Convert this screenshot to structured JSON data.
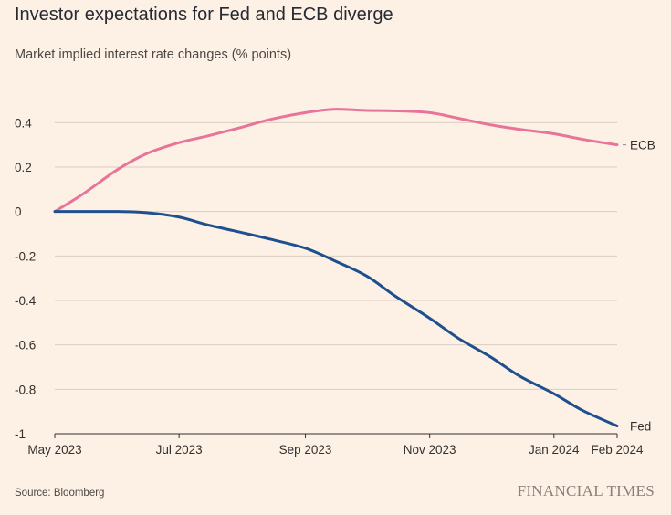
{
  "title": "Investor expectations for Fed and ECB diverge",
  "subtitle": "Market implied interest rate changes (% points)",
  "source": "Source: Bloomberg",
  "brand": "FINANCIAL TIMES",
  "colors": {
    "background": "#fdf1e5",
    "grid": "#d9cdc2",
    "axis": "#33302e",
    "ecb": "#e8749a",
    "fed": "#1e4f8f"
  },
  "chart_data": {
    "type": "line",
    "title": "Investor expectations for Fed and ECB diverge",
    "ylabel": "Market implied interest rate changes (% points)",
    "xlabel": "",
    "ylim": [
      -1,
      0.5
    ],
    "yticks": [
      0.4,
      0.2,
      0,
      -0.2,
      -0.4,
      -0.6,
      -0.8,
      -1
    ],
    "ytick_labels": [
      "0.4",
      "0.2",
      "0",
      "-0.2",
      "-0.4",
      "-0.6",
      "-0.8",
      "-1"
    ],
    "xlim": [
      "2023-05-01",
      "2024-02-01"
    ],
    "xticks": [
      {
        "date": "2023-05-01",
        "label": "May 2023"
      },
      {
        "date": "2023-07-01",
        "label": "Jul 2023"
      },
      {
        "date": "2023-09-01",
        "label": "Sep 2023"
      },
      {
        "date": "2023-11-01",
        "label": "Nov 2023"
      },
      {
        "date": "2024-01-01",
        "label": "Jan 2024"
      },
      {
        "date": "2024-02-01",
        "label": "Feb 2024"
      }
    ],
    "grid": true,
    "series": [
      {
        "name": "ECB",
        "color": "#e8749a",
        "points": [
          {
            "x": "2023-05-01",
            "y": 0.0
          },
          {
            "x": "2023-05-15",
            "y": 0.08
          },
          {
            "x": "2023-06-01",
            "y": 0.19
          },
          {
            "x": "2023-06-15",
            "y": 0.26
          },
          {
            "x": "2023-07-01",
            "y": 0.31
          },
          {
            "x": "2023-07-15",
            "y": 0.34
          },
          {
            "x": "2023-08-01",
            "y": 0.38
          },
          {
            "x": "2023-08-15",
            "y": 0.415
          },
          {
            "x": "2023-09-01",
            "y": 0.445
          },
          {
            "x": "2023-09-15",
            "y": 0.46
          },
          {
            "x": "2023-10-01",
            "y": 0.455
          },
          {
            "x": "2023-10-15",
            "y": 0.453
          },
          {
            "x": "2023-11-01",
            "y": 0.445
          },
          {
            "x": "2023-11-15",
            "y": 0.42
          },
          {
            "x": "2023-12-01",
            "y": 0.39
          },
          {
            "x": "2023-12-15",
            "y": 0.37
          },
          {
            "x": "2024-01-01",
            "y": 0.35
          },
          {
            "x": "2024-01-15",
            "y": 0.325
          },
          {
            "x": "2024-02-01",
            "y": 0.3
          }
        ]
      },
      {
        "name": "Fed",
        "color": "#1e4f8f",
        "points": [
          {
            "x": "2023-05-01",
            "y": 0.0
          },
          {
            "x": "2023-05-15",
            "y": 0.0
          },
          {
            "x": "2023-06-01",
            "y": 0.0
          },
          {
            "x": "2023-06-15",
            "y": -0.005
          },
          {
            "x": "2023-07-01",
            "y": -0.025
          },
          {
            "x": "2023-07-15",
            "y": -0.06
          },
          {
            "x": "2023-08-01",
            "y": -0.095
          },
          {
            "x": "2023-08-15",
            "y": -0.125
          },
          {
            "x": "2023-09-01",
            "y": -0.165
          },
          {
            "x": "2023-09-15",
            "y": -0.22
          },
          {
            "x": "2023-10-01",
            "y": -0.29
          },
          {
            "x": "2023-10-15",
            "y": -0.38
          },
          {
            "x": "2023-11-01",
            "y": -0.48
          },
          {
            "x": "2023-11-15",
            "y": -0.57
          },
          {
            "x": "2023-12-01",
            "y": -0.655
          },
          {
            "x": "2023-12-15",
            "y": -0.74
          },
          {
            "x": "2024-01-01",
            "y": -0.82
          },
          {
            "x": "2024-01-15",
            "y": -0.895
          },
          {
            "x": "2024-02-01",
            "y": -0.965
          }
        ]
      }
    ]
  }
}
